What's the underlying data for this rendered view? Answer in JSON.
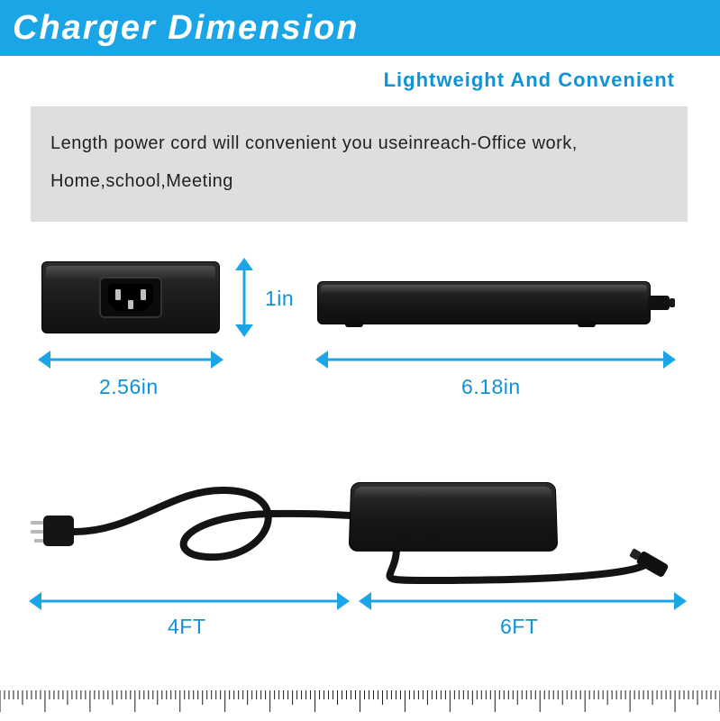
{
  "colors": {
    "brand_blue": "#1aa5e6",
    "accent_blue": "#0d93d6",
    "desc_bg": "#dddedf",
    "tick": "#1b1b1b",
    "cord": "#141414"
  },
  "header": {
    "title": "Charger Dimension"
  },
  "subtitle": "Lightweight And Convenient",
  "description": "Length power cord will convenient you useinreach-Office work, Home,school,Meeting",
  "dimensions": {
    "width_label": "2.56in",
    "height_label": "1in",
    "length_label": "6.18in",
    "power_cord_label": "4FT",
    "output_cord_label": "6FT"
  },
  "ruler": {
    "unit_count": 16,
    "minor_per_unit": 10,
    "minor_height": 10,
    "half_height": 16,
    "major_height": 24
  }
}
